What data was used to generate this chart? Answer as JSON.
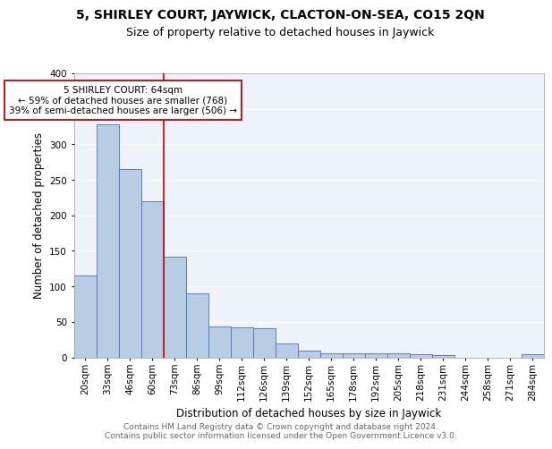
{
  "title1": "5, SHIRLEY COURT, JAYWICK, CLACTON-ON-SEA, CO15 2QN",
  "title2": "Size of property relative to detached houses in Jaywick",
  "xlabel": "Distribution of detached houses by size in Jaywick",
  "ylabel": "Number of detached properties",
  "categories": [
    "20sqm",
    "33sqm",
    "46sqm",
    "60sqm",
    "73sqm",
    "86sqm",
    "99sqm",
    "112sqm",
    "126sqm",
    "139sqm",
    "152sqm",
    "165sqm",
    "178sqm",
    "192sqm",
    "205sqm",
    "218sqm",
    "231sqm",
    "244sqm",
    "258sqm",
    "271sqm",
    "284sqm"
  ],
  "values": [
    115,
    328,
    265,
    220,
    142,
    90,
    44,
    42,
    41,
    19,
    9,
    6,
    6,
    6,
    6,
    4,
    3,
    0,
    0,
    0,
    5
  ],
  "bar_color": "#b8cce4",
  "bar_edge_color": "#4472c4",
  "annotation_text": "5 SHIRLEY COURT: 64sqm\n← 59% of detached houses are smaller (768)\n39% of semi-detached houses are larger (506) →",
  "annotation_box_color": "#ffffff",
  "annotation_box_edge": "#cc0000",
  "vline_x": 3.5,
  "vline_color": "#cc0000",
  "ylim": [
    0,
    400
  ],
  "footnote1": "Contains HM Land Registry data © Crown copyright and database right 2024.",
  "footnote2": "Contains public sector information licensed under the Open Government Licence v3.0.",
  "background_color": "#eef2fa",
  "grid_color": "#ffffff",
  "title1_fontsize": 10,
  "title2_fontsize": 9,
  "xlabel_fontsize": 8.5,
  "ylabel_fontsize": 8.5,
  "tick_fontsize": 7.5,
  "footnote_fontsize": 6.5,
  "annot_fontsize": 7.5
}
